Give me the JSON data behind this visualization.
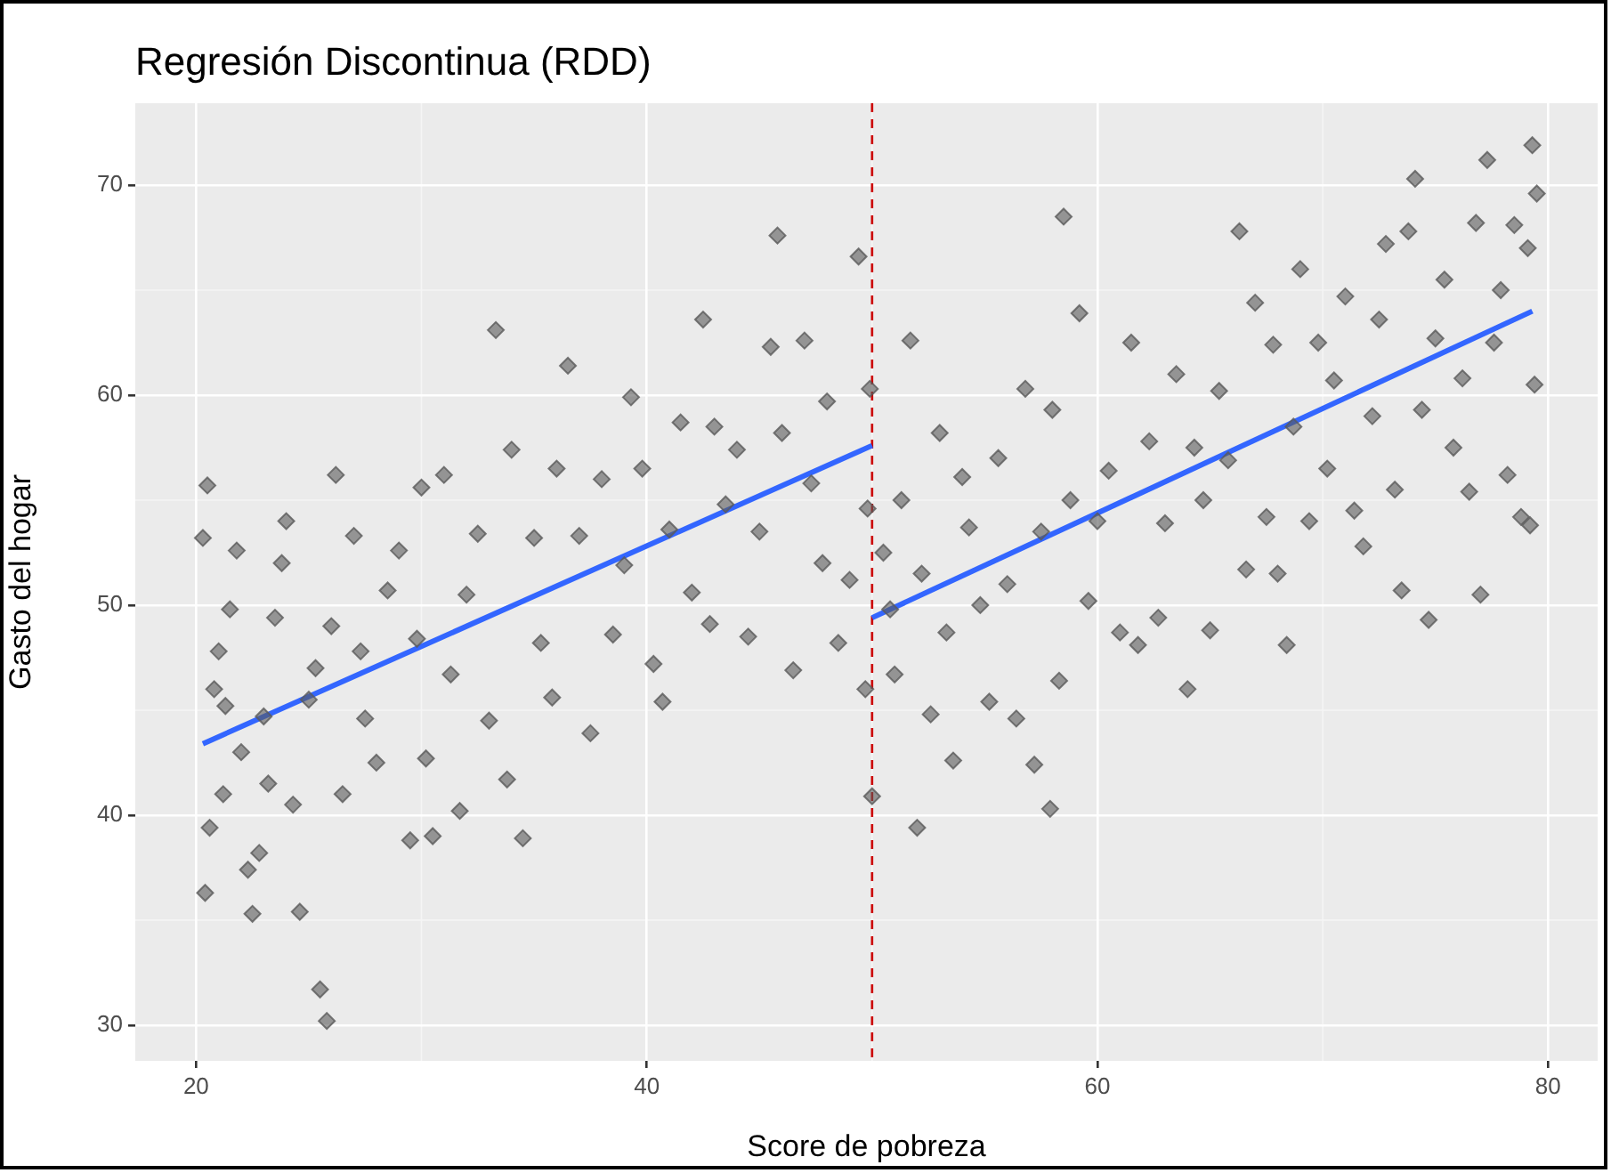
{
  "chart_data": {
    "type": "scatter",
    "title": "Regresión Discontinua (RDD)",
    "xlabel": "Score de pobreza",
    "ylabel": "Gasto del hogar",
    "xlim": [
      17.3,
      82.2
    ],
    "ylim": [
      28.3,
      73.9
    ],
    "xticks": [
      20,
      40,
      60,
      80
    ],
    "yticks": [
      30,
      40,
      50,
      60,
      70
    ],
    "grid": true,
    "legend": false,
    "series": [
      {
        "marker": "diamond",
        "color": "#5a5a5a",
        "x": [
          20.3,
          20.5,
          20.4,
          20.6,
          20.8,
          21,
          21.3,
          21.2,
          21.5,
          21.8,
          22,
          22.3,
          22.5,
          22.8,
          23,
          23.2,
          23.5,
          23.8,
          24,
          24.3,
          24.6,
          25,
          25.3,
          25.5,
          25.8,
          26,
          26.2,
          26.5,
          27,
          27.3,
          27.5,
          28,
          28.5,
          29,
          29.5,
          29.8,
          30,
          30.2,
          30.5,
          31,
          31.3,
          31.7,
          32,
          32.5,
          33,
          33.3,
          33.8,
          34,
          34.5,
          35,
          35.3,
          35.8,
          36,
          36.5,
          37,
          37.5,
          38,
          38.5,
          39,
          39.3,
          39.8,
          40.3,
          40.7,
          41,
          41.5,
          42,
          42.5,
          42.8,
          43,
          43.5,
          44,
          44.5,
          45,
          45.5,
          45.8,
          46,
          46.5,
          47,
          47.3,
          47.8,
          48,
          48.5,
          49,
          49.4,
          49.8,
          49.7,
          49.9,
          50
        ],
        "values": [
          53.2,
          55.7,
          36.3,
          39.4,
          46,
          47.8,
          45.2,
          41,
          49.8,
          52.6,
          43,
          37.4,
          35.3,
          38.2,
          44.7,
          41.5,
          49.4,
          52,
          54,
          40.5,
          35.4,
          45.5,
          47,
          31.7,
          30.2,
          49,
          56.2,
          41,
          53.3,
          47.8,
          44.6,
          42.5,
          50.7,
          52.6,
          38.8,
          48.4,
          55.6,
          42.7,
          39,
          56.2,
          46.7,
          40.2,
          50.5,
          53.4,
          44.5,
          63.1,
          41.7,
          57.4,
          38.9,
          53.2,
          48.2,
          45.6,
          56.5,
          61.4,
          53.3,
          43.9,
          56,
          48.6,
          51.9,
          59.9,
          56.5,
          47.2,
          45.4,
          53.6,
          58.7,
          50.6,
          63.6,
          49.1,
          58.5,
          54.8,
          57.4,
          48.5,
          53.5,
          62.3,
          67.6,
          58.2,
          46.9,
          62.6,
          55.8,
          52,
          59.7,
          48.2,
          51.2,
          66.6,
          54.6,
          46,
          60.3,
          40.9
        ]
      },
      {
        "marker": "diamond",
        "color": "#5a5a5a",
        "x": [
          50.5,
          50.8,
          51,
          51.3,
          51.7,
          52,
          52.2,
          52.6,
          53,
          53.3,
          53.6,
          54,
          54.3,
          54.8,
          55.2,
          55.6,
          56,
          56.4,
          56.8,
          57.2,
          57.5,
          57.9,
          58,
          58.3,
          58.5,
          58.8,
          59.2,
          59.6,
          60,
          60.5,
          61,
          61.5,
          61.8,
          62.3,
          62.7,
          63,
          63.5,
          64,
          64.3,
          64.7,
          65,
          65.4,
          65.8,
          66.3,
          66.6,
          67,
          67.5,
          67.8,
          68,
          68.4,
          68.7,
          69,
          69.4,
          69.8,
          70.2,
          70.5,
          71,
          71.4,
          71.8,
          72.2,
          72.5,
          72.8,
          73.2,
          73.5,
          73.8,
          74.1,
          74.4,
          74.7,
          75,
          75.4,
          75.8,
          76.2,
          76.5,
          76.8,
          77,
          77.3,
          77.6,
          77.9,
          78.2,
          78.5,
          78.8,
          79.1,
          79.3,
          79.4,
          79.2,
          79.5
        ],
        "values": [
          52.5,
          49.8,
          46.7,
          55,
          62.6,
          39.4,
          51.5,
          44.8,
          58.2,
          48.7,
          42.6,
          56.1,
          53.7,
          50,
          45.4,
          57,
          51,
          44.6,
          60.3,
          42.4,
          53.5,
          40.3,
          59.3,
          46.4,
          68.5,
          55,
          63.9,
          50.2,
          54,
          56.4,
          48.7,
          62.5,
          48.1,
          57.8,
          49.4,
          53.9,
          61,
          46,
          57.5,
          55,
          48.8,
          60.2,
          56.9,
          67.8,
          51.7,
          64.4,
          54.2,
          62.4,
          51.5,
          48.1,
          58.5,
          66,
          54,
          62.5,
          56.5,
          60.7,
          64.7,
          54.5,
          52.8,
          59,
          63.6,
          67.2,
          55.5,
          50.7,
          67.8,
          70.3,
          59.3,
          49.3,
          62.7,
          65.5,
          57.5,
          60.8,
          55.4,
          68.2,
          50.5,
          71.2,
          62.5,
          65,
          56.2,
          68.1,
          54.2,
          67,
          71.9,
          60.5,
          53.8,
          69.6
        ]
      },
      {
        "type": "line",
        "marker": "none",
        "color": "#3366ff",
        "x": [
          20.3,
          50
        ],
        "values": [
          43.4,
          57.6
        ]
      },
      {
        "type": "line",
        "marker": "none",
        "color": "#3366ff",
        "x": [
          50,
          79.3
        ],
        "values": [
          49.4,
          64
        ]
      }
    ],
    "ref_lines": [
      {
        "axis": "x",
        "value": 50,
        "color": "#cc0000",
        "line_style": "dashed"
      }
    ]
  }
}
